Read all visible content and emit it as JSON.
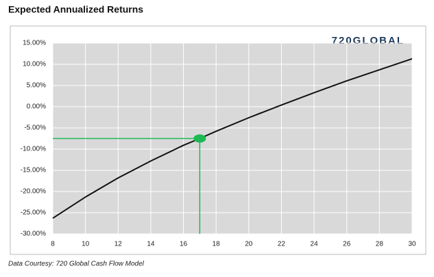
{
  "chart_data": {
    "type": "line",
    "title": "Expected Annualized Returns",
    "source": "Data Courtesy: 720 Global Cash Flow Model",
    "logo": "720GLOBAL",
    "x": [
      8,
      10,
      12,
      14,
      16,
      17,
      18,
      20,
      22,
      24,
      26,
      28,
      30
    ],
    "series": [
      {
        "color": "#111111",
        "values": [
          -26.3,
          -21.3,
          -16.8,
          -12.8,
          -9.1,
          -7.5,
          -5.8,
          -2.6,
          0.4,
          3.3,
          6.1,
          8.7,
          11.3
        ]
      }
    ],
    "highlight": {
      "x": 17,
      "y": -7.5,
      "color": "#1db954"
    },
    "xlim": [
      8,
      30
    ],
    "xticks": [
      8,
      10,
      12,
      14,
      16,
      18,
      20,
      22,
      24,
      26,
      28,
      30
    ],
    "ylim": [
      -30,
      15
    ],
    "yticks": [
      {
        "value": -30,
        "label": "-30.00%"
      },
      {
        "value": -25,
        "label": "-25.00%"
      },
      {
        "value": -20,
        "label": "-20.00%"
      },
      {
        "value": -15,
        "label": "-15.00%"
      },
      {
        "value": -10,
        "label": "-10.00%"
      },
      {
        "value": -5,
        "label": "-5.00%"
      },
      {
        "value": 0,
        "label": "0.00%"
      },
      {
        "value": 5,
        "label": "5.00%"
      },
      {
        "value": 10,
        "label": "10.00%"
      },
      {
        "value": 15,
        "label": "15.00%"
      }
    ],
    "grid": true
  }
}
